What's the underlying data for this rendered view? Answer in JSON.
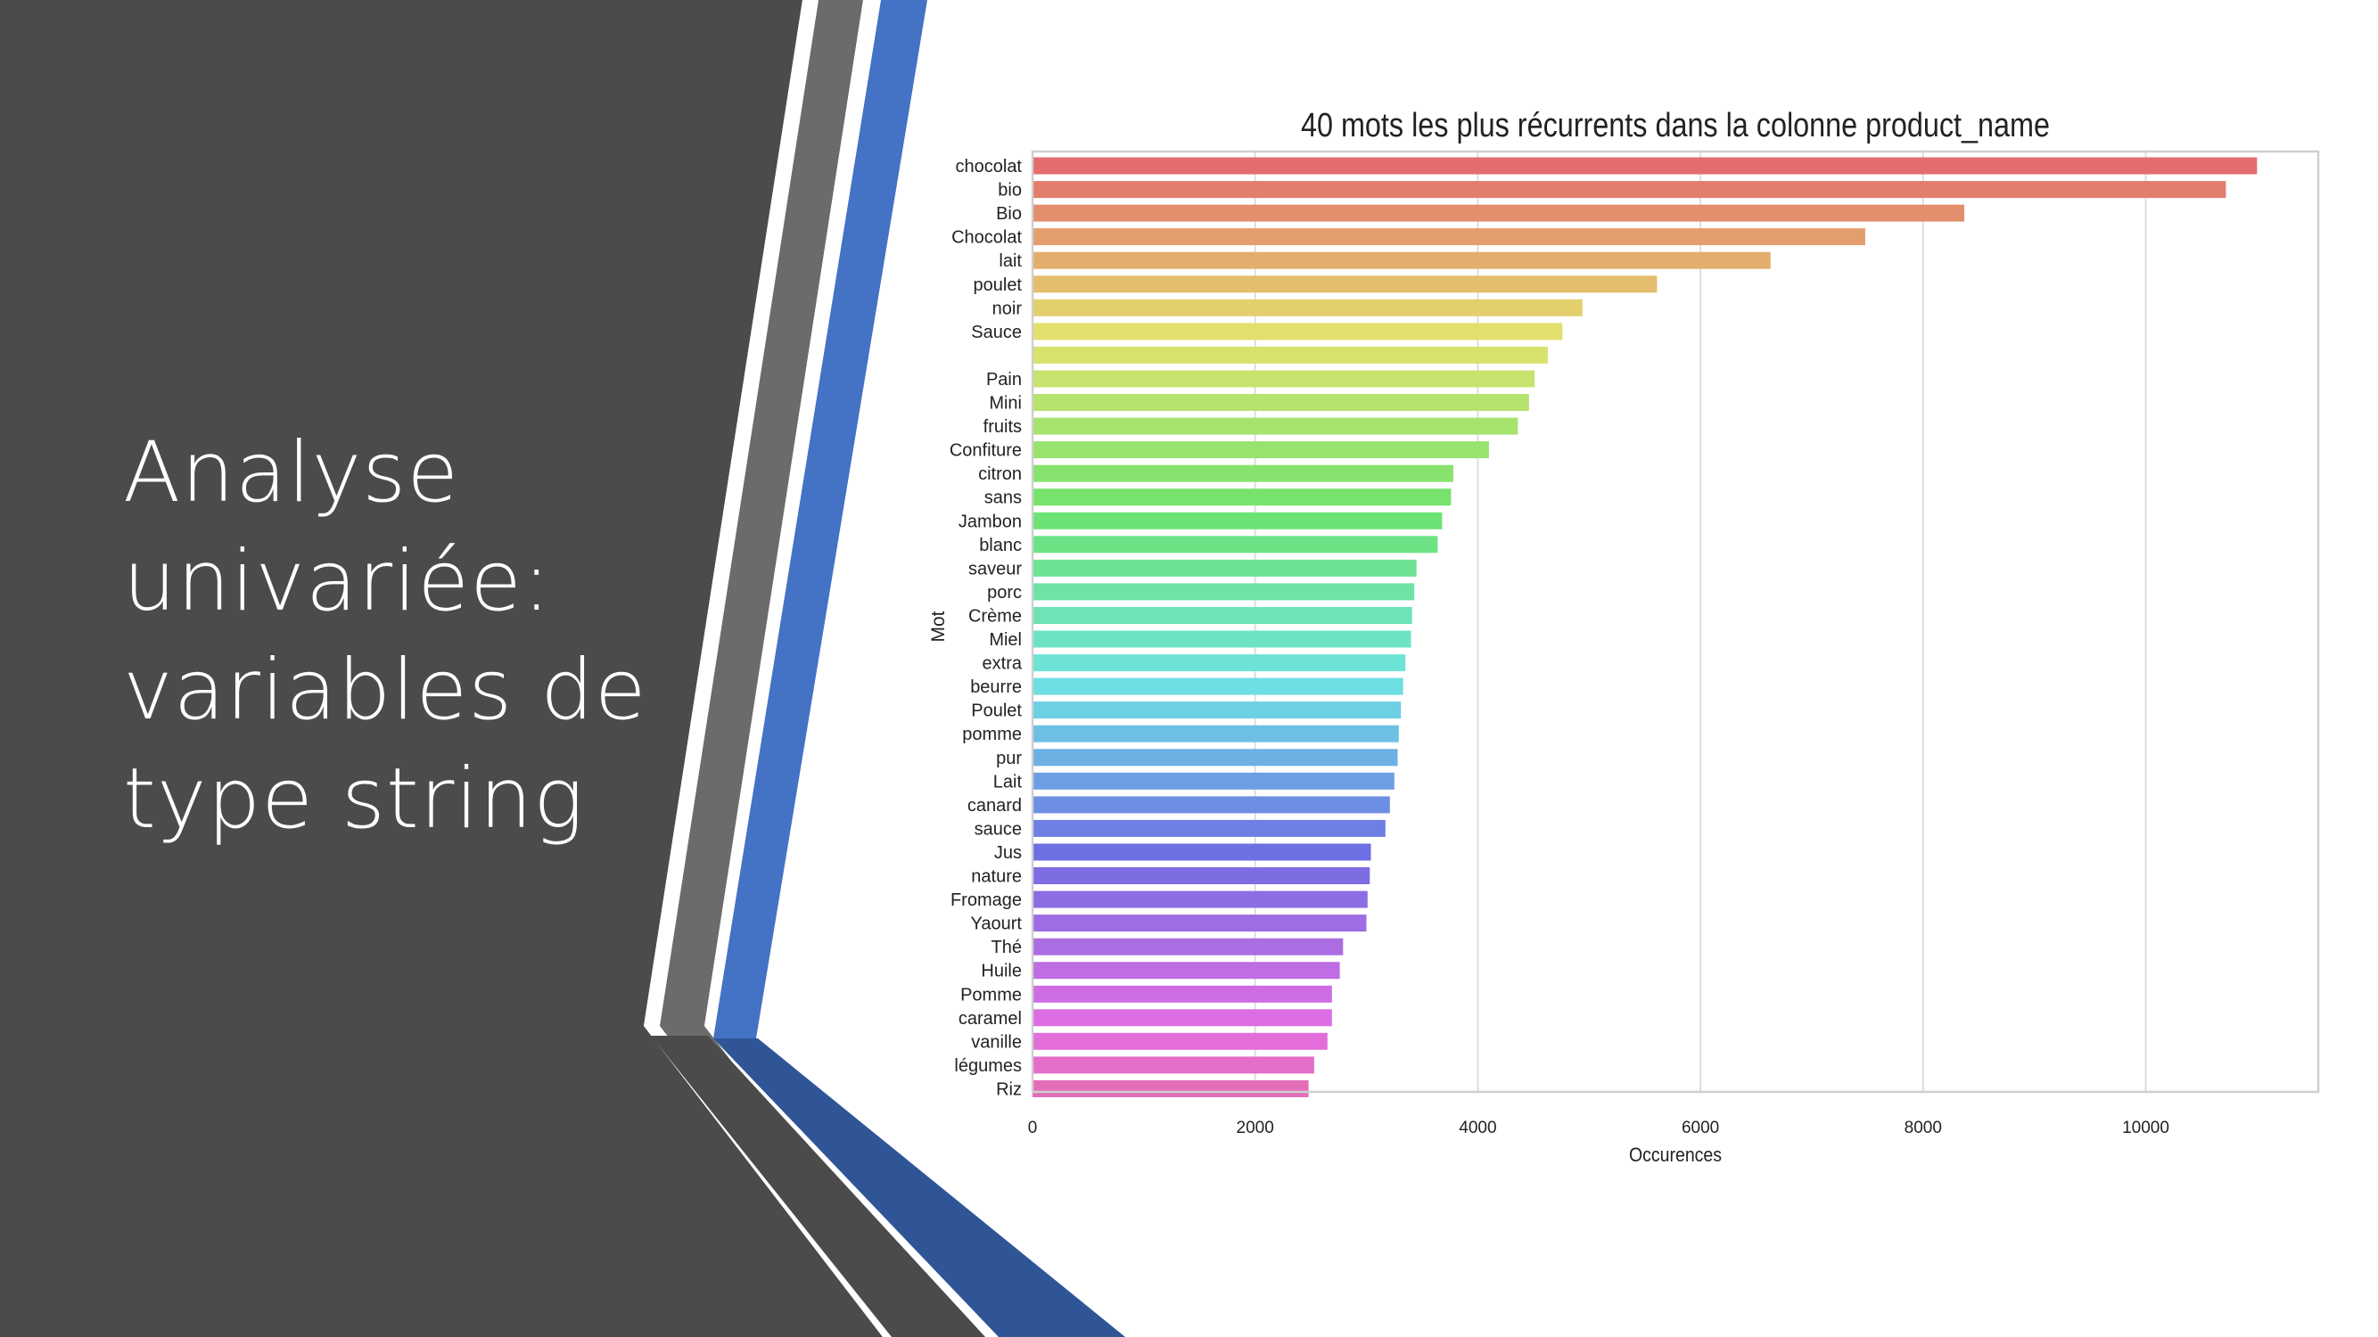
{
  "slide": {
    "title_lines": [
      "Analyse",
      "univariée:",
      "variables de",
      "type string"
    ]
  },
  "colors": {
    "background_dark": "#4b4b4b",
    "stripe_gray": "#6b6b6b",
    "stripe_blue": "#4472c4",
    "stripe_blue_dark": "#2f5597"
  },
  "chart_data": {
    "type": "bar",
    "orientation": "horizontal",
    "title": "40 mots les plus récurrents dans la colonne product_name",
    "xlabel": "Occurences",
    "ylabel": "Mot",
    "xlim": [
      0,
      11550
    ],
    "xticks": [
      0,
      2000,
      4000,
      6000,
      8000,
      10000
    ],
    "grid": true,
    "palette": "husl",
    "categories": [
      "chocolat",
      "bio",
      "Bio",
      "Chocolat",
      "lait",
      "poulet",
      "noir",
      "Sauce",
      "",
      "Pain",
      "Mini",
      "fruits",
      "Confiture",
      "citron",
      "sans",
      "Jambon",
      "blanc",
      "saveur",
      "porc",
      "Crème",
      "Miel",
      "extra",
      "beurre",
      "Poulet",
      "pomme",
      "pur",
      "Lait",
      "canard",
      "sauce",
      "Jus",
      "nature",
      "Fromage",
      "Yaourt",
      "Thé",
      "Huile",
      "Pomme",
      "caramel",
      "vanille",
      "légumes",
      "Riz"
    ],
    "values": [
      11000,
      10720,
      8370,
      7480,
      6630,
      5610,
      4940,
      4760,
      4630,
      4510,
      4460,
      4360,
      4100,
      3780,
      3760,
      3680,
      3640,
      3450,
      3430,
      3410,
      3400,
      3350,
      3330,
      3310,
      3290,
      3280,
      3250,
      3210,
      3170,
      3040,
      3030,
      3010,
      3000,
      2790,
      2760,
      2690,
      2690,
      2650,
      2530,
      2480
    ]
  }
}
